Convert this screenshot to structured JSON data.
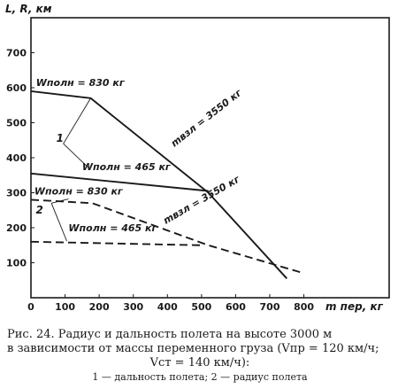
{
  "chart_data": {
    "type": "line",
    "y_axis_label": "L, R, км",
    "x_axis_label": "m пер, кг",
    "xlim": [
      0,
      1050
    ],
    "ylim": [
      0,
      800
    ],
    "x_ticks": [
      0,
      100,
      200,
      300,
      400,
      500,
      600,
      700,
      800
    ],
    "y_ticks": [
      100,
      200,
      300,
      400,
      500,
      600,
      700
    ],
    "grid": false,
    "curve_labels": [
      "1",
      "2"
    ],
    "series": [
      {
        "curve": "1",
        "style": "solid",
        "points": [
          [
            0,
            590
          ],
          [
            175,
            570
          ],
          [
            520,
            300
          ],
          [
            750,
            55
          ]
        ]
      },
      {
        "curve": "1",
        "style": "solid",
        "points": [
          [
            0,
            355
          ],
          [
            520,
            305
          ]
        ]
      },
      {
        "curve": "2",
        "style": "dashed",
        "points": [
          [
            0,
            280
          ],
          [
            180,
            270
          ],
          [
            520,
            150
          ],
          [
            800,
            70
          ]
        ]
      },
      {
        "curve": "2",
        "style": "dashed",
        "points": [
          [
            0,
            160
          ],
          [
            500,
            150
          ]
        ]
      }
    ],
    "annotations": [
      {
        "text": "Wполн = 830 кг",
        "x": 15,
        "y": 605
      },
      {
        "text": "mвзл = 3550 кг",
        "x": 420,
        "y": 430
      },
      {
        "text": "Wполн = 465 кг",
        "x": 150,
        "y": 365
      },
      {
        "text": "Wполн = 830 кг",
        "x": 10,
        "y": 295
      },
      {
        "text": "mвзл = 3550 кг",
        "x": 395,
        "y": 210
      },
      {
        "text": "Wполн = 465 кг",
        "x": 110,
        "y": 190
      }
    ]
  },
  "caption": {
    "line1": "Рис. 24. Радиус и дальность полета на высоте 3000 м",
    "line2": "в зависимости от массы переменного груза (Vпр = 120 км/ч;",
    "line3": "Vст = 140 км/ч):",
    "line4": "1 — дальность полета; 2 — радиус полета"
  }
}
